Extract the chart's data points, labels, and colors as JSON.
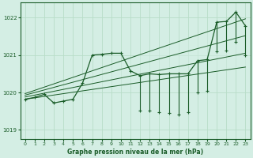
{
  "xlabel": "Graphe pression niveau de la mer (hPa)",
  "ylim": [
    1018.75,
    1022.4
  ],
  "xlim": [
    -0.5,
    23.5
  ],
  "yticks": [
    1019,
    1020,
    1021,
    1022
  ],
  "xticks": [
    0,
    1,
    2,
    3,
    4,
    5,
    6,
    7,
    8,
    9,
    10,
    11,
    12,
    13,
    14,
    15,
    16,
    17,
    18,
    19,
    20,
    21,
    22,
    23
  ],
  "pressure": [
    1019.82,
    1019.87,
    1019.95,
    1019.72,
    1019.77,
    1019.82,
    1020.25,
    1021.0,
    1021.02,
    1021.05,
    1021.05,
    1020.58,
    1020.45,
    1020.5,
    1020.48,
    1020.5,
    1020.5,
    1020.5,
    1020.85,
    1020.88,
    1021.88,
    1021.9,
    1022.15,
    1021.78
  ],
  "bg_color": "#d4eee4",
  "line_color": "#1a5c28",
  "grid_color": "#b8ddc8",
  "trend_lines": [
    {
      "x0": 0,
      "y0": 1019.82,
      "x1": 23,
      "y1": 1020.68
    },
    {
      "x0": 0,
      "y0": 1019.88,
      "x1": 23,
      "y1": 1021.05
    },
    {
      "x0": 0,
      "y0": 1019.93,
      "x1": 23,
      "y1": 1021.52
    },
    {
      "x0": 0,
      "y0": 1019.97,
      "x1": 23,
      "y1": 1021.97
    }
  ],
  "spike_hours": [
    12,
    13,
    14,
    15,
    16,
    17,
    18,
    19,
    20,
    21,
    22,
    23
  ],
  "spike_bottoms": [
    1019.52,
    1019.52,
    1019.48,
    1019.45,
    1019.42,
    1019.48,
    1020.0,
    1020.05,
    1021.1,
    1021.12,
    1021.35,
    1021.0
  ]
}
